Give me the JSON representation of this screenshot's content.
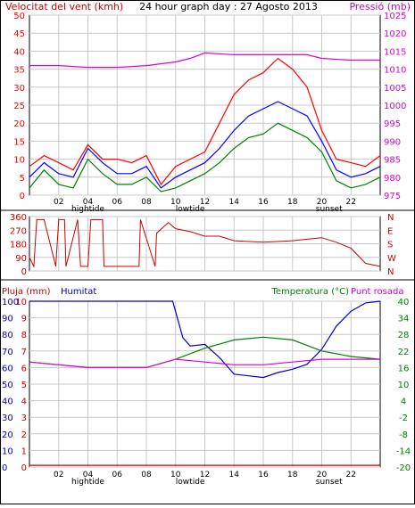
{
  "title": "24 hour graph day : 27 Agosto 2013",
  "colors": {
    "wind_speed": "#ff0000",
    "wind_avg": "#0000ff",
    "wind_gust_low": "#008000",
    "pressure": "#e000e0",
    "direction": "#cc0000",
    "rain": "#cc0000",
    "humidity": "#0000cc",
    "temperature": "#008000",
    "dewpoint": "#e000e0",
    "grid": "#c8c8c8"
  },
  "hour_labels": [
    "02",
    "04",
    "06",
    "08",
    "10",
    "12",
    "14",
    "16",
    "18",
    "20",
    "22"
  ],
  "tide_labels": {
    "hightide": "hightide",
    "lowtide": "lowtide",
    "sunset": "sunset"
  },
  "chart_data": [
    {
      "type": "line",
      "title": "Velocitat del vent (kmh)",
      "title_right": "Pressió (mb)",
      "x_range": [
        0,
        24
      ],
      "ylim_left": [
        0,
        50
      ],
      "y_ticks_left": [
        "0",
        "5",
        "10",
        "15",
        "20",
        "25",
        "30",
        "35",
        "40",
        "45",
        "50"
      ],
      "ylim_right": [
        975,
        1025
      ],
      "y_ticks_right": [
        "975",
        "980",
        "985",
        "990",
        "995",
        "1000",
        "1005",
        "1010",
        "1015",
        "1020",
        "1025"
      ],
      "series": [
        {
          "key": "wind_max",
          "color": "red",
          "x": [
            0,
            1,
            2,
            3,
            4,
            5,
            6,
            7,
            8,
            9,
            10,
            11,
            12,
            13,
            14,
            15,
            16,
            17,
            18,
            19,
            20,
            21,
            22,
            23,
            24
          ],
          "values": [
            8,
            11,
            9,
            7,
            14,
            10,
            10,
            9,
            11,
            3,
            8,
            10,
            12,
            20,
            28,
            32,
            34,
            38,
            35,
            30,
            18,
            10,
            9,
            8,
            11
          ]
        },
        {
          "key": "wind_avg",
          "color": "blue",
          "x": [
            0,
            1,
            2,
            3,
            4,
            5,
            6,
            7,
            8,
            9,
            10,
            11,
            12,
            13,
            14,
            15,
            16,
            17,
            18,
            19,
            20,
            21,
            22,
            23,
            24
          ],
          "values": [
            5,
            9,
            6,
            5,
            13,
            9,
            6,
            6,
            8,
            2,
            5,
            7,
            9,
            13,
            18,
            22,
            24,
            26,
            24,
            22,
            15,
            7,
            5,
            6,
            8
          ]
        },
        {
          "key": "wind_min",
          "color": "green",
          "x": [
            0,
            1,
            2,
            3,
            4,
            5,
            6,
            7,
            8,
            9,
            10,
            11,
            12,
            13,
            14,
            15,
            16,
            17,
            18,
            19,
            20,
            21,
            22,
            23,
            24
          ],
          "values": [
            2,
            7,
            3,
            2,
            10,
            6,
            3,
            3,
            5,
            1,
            2,
            4,
            6,
            9,
            13,
            16,
            17,
            20,
            18,
            16,
            12,
            4,
            2,
            3,
            5
          ]
        },
        {
          "key": "pressure",
          "color": "magenta",
          "axis": "right",
          "x": [
            0,
            2,
            4,
            6,
            8,
            10,
            11,
            12,
            14,
            16,
            18,
            19,
            20,
            22,
            24
          ],
          "values": [
            1011,
            1011,
            1010.5,
            1010.5,
            1011,
            1012,
            1013,
            1014.5,
            1014,
            1014,
            1014,
            1014,
            1013,
            1012.5,
            1012.5
          ]
        }
      ]
    },
    {
      "type": "line",
      "title": "",
      "ylim_left": [
        0,
        360
      ],
      "y_ticks_left": [
        "0",
        "90",
        "180",
        "270",
        "360"
      ],
      "y_ticks_right": [
        "N",
        "E",
        "S",
        "W",
        "N"
      ],
      "series": [
        {
          "key": "direction",
          "color": "red",
          "x": [
            0,
            0.3,
            0.5,
            1,
            1.8,
            2,
            2.4,
            2.5,
            3.3,
            3.5,
            4,
            4.2,
            5,
            5.1,
            6,
            7,
            7.5,
            7.6,
            8.6,
            8.7,
            9.5,
            10,
            11,
            12,
            13,
            14,
            16,
            18,
            19,
            20,
            21,
            22,
            23,
            24
          ],
          "values": [
            90,
            30,
            340,
            340,
            30,
            340,
            340,
            30,
            340,
            30,
            30,
            340,
            340,
            30,
            30,
            30,
            30,
            340,
            30,
            250,
            320,
            280,
            260,
            230,
            230,
            200,
            190,
            200,
            210,
            220,
            190,
            150,
            50,
            30
          ]
        }
      ]
    },
    {
      "type": "line",
      "title_left": "Pluja (mm)",
      "title_humidity": "Humitat",
      "title_right": "Temperatura (°C)",
      "title_right2": "Punt rosada",
      "ylim_rain": [
        0,
        10
      ],
      "y_ticks_rain": [
        "0",
        "1",
        "2",
        "3",
        "4",
        "5",
        "6",
        "7",
        "8",
        "9",
        "10"
      ],
      "ylim_humidity": [
        0,
        100
      ],
      "y_ticks_humidity": [
        "0",
        "10",
        "20",
        "30",
        "40",
        "50",
        "60",
        "70",
        "80",
        "90",
        "100"
      ],
      "ylim_temp": [
        -20,
        40
      ],
      "y_ticks_temp": [
        "-20",
        "-14",
        "-8",
        "-2",
        "4",
        "10",
        "16",
        "22",
        "28",
        "34",
        "40"
      ],
      "series": [
        {
          "key": "rain",
          "color": "red",
          "axis": "rain",
          "x": [
            0,
            24
          ],
          "values": [
            0.1,
            0.1
          ]
        },
        {
          "key": "humidity",
          "color": "blue",
          "axis": "humidity",
          "x": [
            0,
            2,
            4,
            6,
            8,
            9.8,
            10.5,
            11,
            12,
            13,
            14,
            15,
            16,
            17,
            18,
            19,
            20,
            21,
            22,
            23,
            24
          ],
          "values": [
            100,
            100,
            100,
            100,
            100,
            100,
            78,
            73,
            74,
            66,
            56,
            55,
            54,
            57,
            59,
            62,
            71,
            85,
            94,
            99,
            100
          ]
        },
        {
          "key": "temperature",
          "color": "green",
          "axis": "temp",
          "x": [
            0,
            2,
            4,
            6,
            8,
            10,
            12,
            14,
            16,
            18,
            20,
            22,
            24
          ],
          "values": [
            18,
            17,
            16,
            16,
            16,
            19,
            23,
            26,
            27,
            26,
            22,
            20,
            19
          ]
        },
        {
          "key": "dewpoint",
          "color": "magenta",
          "axis": "temp",
          "x": [
            0,
            2,
            4,
            6,
            8,
            10,
            12,
            14,
            16,
            18,
            20,
            22,
            24
          ],
          "values": [
            18,
            17,
            16,
            16,
            16,
            19,
            18,
            17,
            17,
            18,
            19,
            19,
            19
          ]
        }
      ]
    }
  ]
}
